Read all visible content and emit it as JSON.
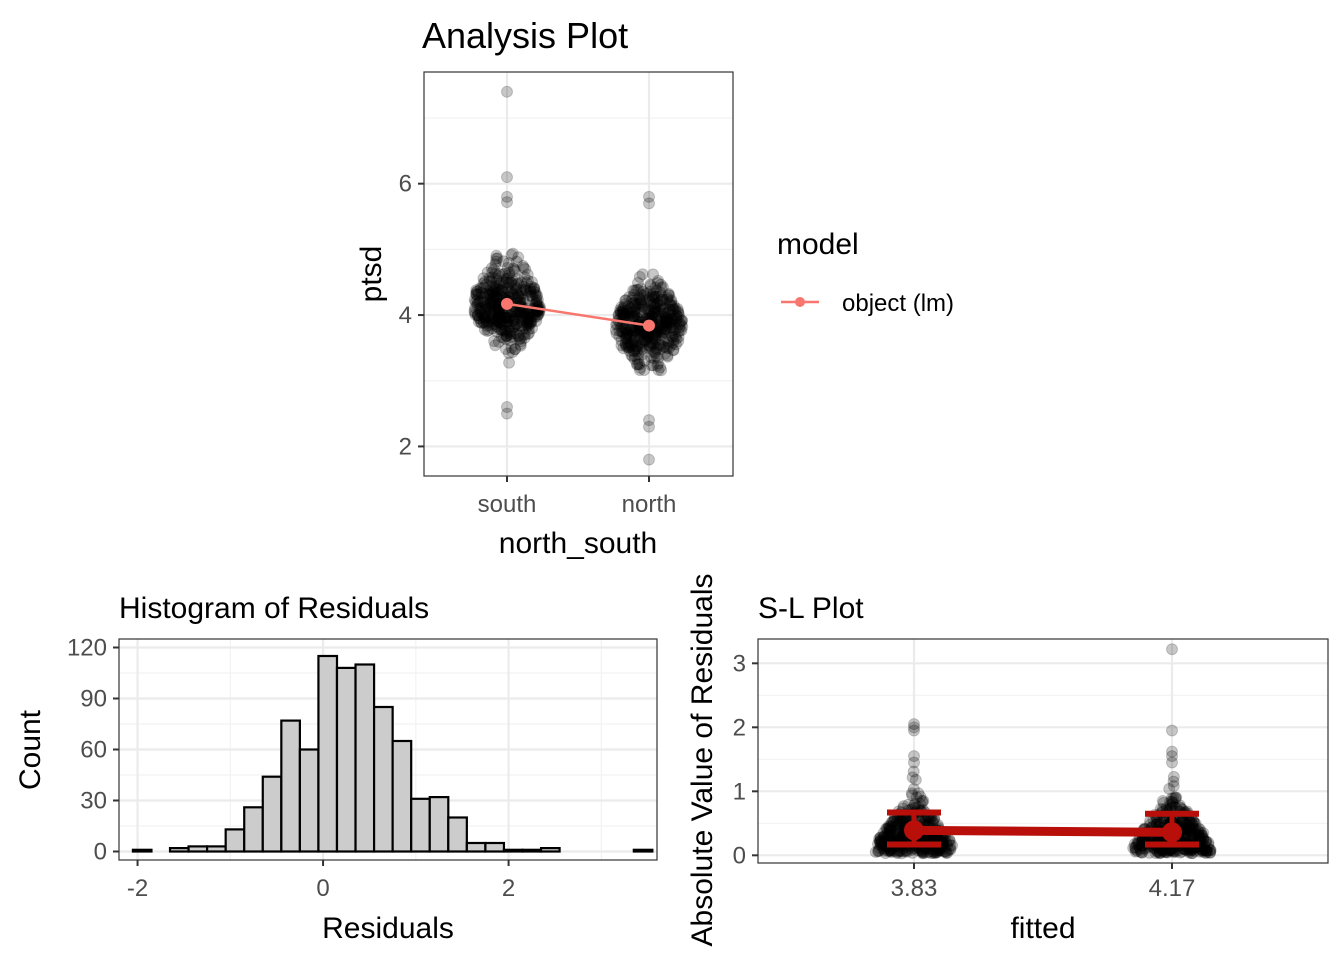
{
  "chart_data": [
    {
      "id": "analysis",
      "type": "scatter",
      "title": "Analysis Plot",
      "xlabel": "north_south",
      "ylabel": "ptsd",
      "categories": [
        "south",
        "north"
      ],
      "ylim": [
        1.55,
        7.7
      ],
      "yticks": [
        2,
        4,
        6
      ],
      "grid": true,
      "legend": {
        "title": "model",
        "placement": "right",
        "entries": [
          {
            "label": "object (lm)",
            "color": "#F8766D"
          }
        ]
      },
      "points": {
        "color": "#000000",
        "opacity": 0.22,
        "south": {
          "center": 4.17,
          "spread": 0.48,
          "n": 430,
          "extremes": [
            7.4,
            6.1,
            5.8,
            5.72,
            2.6,
            2.5
          ]
        },
        "north": {
          "center": 3.84,
          "spread": 0.48,
          "n": 430,
          "extremes": [
            5.8,
            5.7,
            2.4,
            2.3,
            1.8
          ]
        }
      },
      "series": [
        {
          "name": "object (lm)",
          "color": "#F8766D",
          "values": [
            4.17,
            3.84
          ]
        }
      ]
    },
    {
      "id": "histogram",
      "type": "bar",
      "title": "Histogram of Residuals",
      "xlabel": "Residuals",
      "ylabel": "Count",
      "xlim": [
        -2.2,
        3.6
      ],
      "ylim": [
        -5,
        125
      ],
      "xticks": [
        -2,
        0,
        2
      ],
      "yticks": [
        0,
        30,
        60,
        90,
        120
      ],
      "bin_start": -2.05,
      "bin_width": 0.2,
      "values": [
        1,
        0,
        2,
        3,
        3,
        13,
        26,
        44,
        77,
        60,
        115,
        108,
        110,
        85,
        65,
        31,
        32,
        20,
        5,
        5,
        1,
        1,
        2,
        0,
        0,
        0,
        0,
        1
      ],
      "fill": "#cccccc",
      "stroke": "#000000"
    },
    {
      "id": "slplot",
      "type": "scatter",
      "title": "S-L Plot",
      "xlabel": "fitted",
      "ylabel": "Absolute Value of Residuals",
      "categories": [
        "3.83",
        "4.17"
      ],
      "ylim": [
        -0.12,
        3.38
      ],
      "yticks": [
        0,
        1,
        2,
        3
      ],
      "grid": true,
      "points": {
        "color": "#000000",
        "opacity": 0.22,
        "3.83": {
          "n": 430,
          "extremes": [
            2.05,
            2.0,
            1.95,
            1.55,
            1.45
          ]
        },
        "4.17": {
          "n": 430,
          "extremes": [
            3.22,
            1.95,
            1.62,
            1.55,
            1.45
          ]
        }
      },
      "summary": {
        "color": "#B80F0A",
        "means": [
          0.39,
          0.36
        ],
        "lower": [
          0.17,
          0.17
        ],
        "upper": [
          0.67,
          0.65
        ]
      }
    }
  ]
}
